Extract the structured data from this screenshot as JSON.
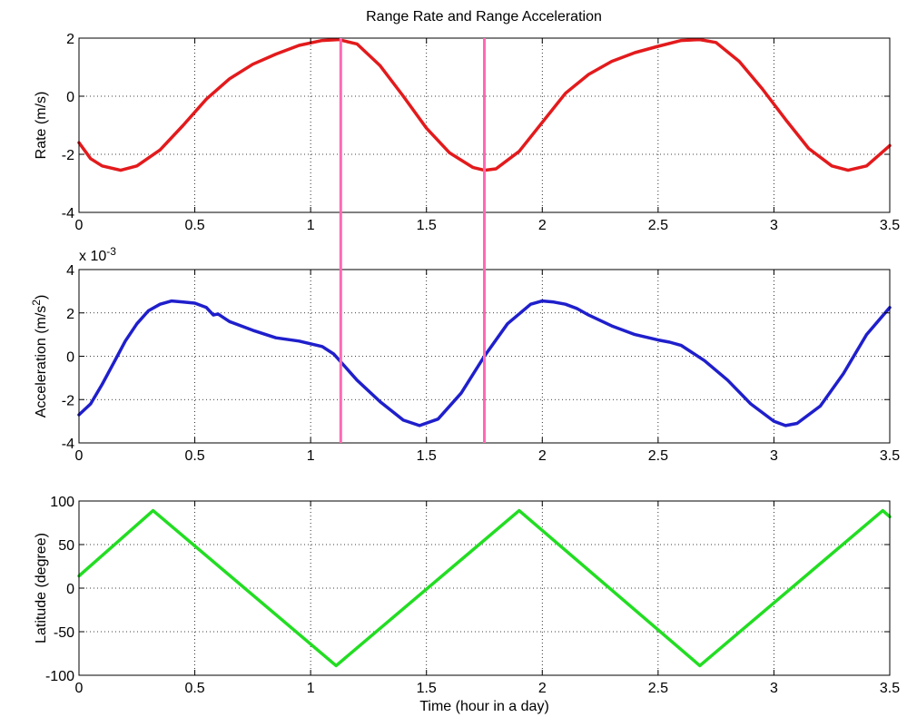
{
  "title": "Range Rate and Range Acceleration",
  "chart_data": [
    {
      "type": "line",
      "ylabel": "Rate (m/s)",
      "xlim": [
        0,
        3.5
      ],
      "ylim": [
        -4,
        2
      ],
      "xticks": [
        "0",
        "0.5",
        "1",
        "1.5",
        "2",
        "2.5",
        "3",
        "3.5"
      ],
      "yticks": [
        "-4",
        "-2",
        "0",
        "2"
      ],
      "grid": true,
      "series": [
        {
          "color": "#e31a1c",
          "x": [
            0,
            0.05,
            0.1,
            0.18,
            0.25,
            0.35,
            0.45,
            0.55,
            0.65,
            0.75,
            0.85,
            0.95,
            1.05,
            1.12,
            1.2,
            1.3,
            1.4,
            1.5,
            1.6,
            1.7,
            1.75,
            1.8,
            1.9,
            2.0,
            2.1,
            2.2,
            2.3,
            2.4,
            2.5,
            2.6,
            2.68,
            2.75,
            2.85,
            2.95,
            3.05,
            3.15,
            3.25,
            3.32,
            3.4,
            3.5
          ],
          "y": [
            -1.6,
            -2.15,
            -2.4,
            -2.55,
            -2.4,
            -1.85,
            -1.0,
            -0.1,
            0.6,
            1.1,
            1.45,
            1.75,
            1.92,
            1.95,
            1.8,
            1.05,
            0.0,
            -1.1,
            -1.95,
            -2.45,
            -2.55,
            -2.5,
            -1.9,
            -0.9,
            0.1,
            0.75,
            1.2,
            1.5,
            1.72,
            1.92,
            1.95,
            1.85,
            1.2,
            0.25,
            -0.8,
            -1.8,
            -2.4,
            -2.55,
            -2.4,
            -1.7
          ]
        }
      ]
    },
    {
      "type": "line",
      "ylabel": "Acceleration (m/s²)",
      "ylabel_main": "Acceleration (m/s",
      "ylabel_sup": "2",
      "ylabel_tail": ")",
      "exponent_label": "x 10",
      "exponent_sup": "-3",
      "xlim": [
        0,
        3.5
      ],
      "ylim": [
        -4,
        4
      ],
      "xticks": [
        "0",
        "0.5",
        "1",
        "1.5",
        "2",
        "2.5",
        "3",
        "3.5"
      ],
      "yticks": [
        "-4",
        "-2",
        "0",
        "2",
        "4"
      ],
      "grid": true,
      "series": [
        {
          "color": "#1f1fcc",
          "x": [
            0,
            0.05,
            0.1,
            0.15,
            0.2,
            0.25,
            0.3,
            0.35,
            0.4,
            0.45,
            0.5,
            0.55,
            0.58,
            0.6,
            0.65,
            0.75,
            0.85,
            0.95,
            1.05,
            1.1,
            1.15,
            1.2,
            1.3,
            1.4,
            1.47,
            1.55,
            1.65,
            1.75,
            1.85,
            1.95,
            2.0,
            2.05,
            2.1,
            2.15,
            2.2,
            2.3,
            2.4,
            2.5,
            2.55,
            2.6,
            2.7,
            2.8,
            2.9,
            3.0,
            3.05,
            3.1,
            3.2,
            3.3,
            3.4,
            3.5
          ],
          "y": [
            -2.7,
            -2.2,
            -1.3,
            -0.3,
            0.7,
            1.5,
            2.1,
            2.4,
            2.55,
            2.5,
            2.45,
            2.25,
            1.9,
            1.95,
            1.6,
            1.2,
            0.85,
            0.7,
            0.45,
            0.1,
            -0.5,
            -1.1,
            -2.1,
            -2.95,
            -3.2,
            -2.9,
            -1.7,
            0.0,
            1.5,
            2.4,
            2.55,
            2.5,
            2.4,
            2.2,
            1.9,
            1.4,
            1.0,
            0.75,
            0.65,
            0.5,
            -0.2,
            -1.1,
            -2.2,
            -3.0,
            -3.2,
            -3.1,
            -2.3,
            -0.8,
            1.0,
            2.25
          ]
        }
      ],
      "markers": {
        "color": "#ff69b4",
        "x": [
          1.13,
          1.75
        ]
      }
    },
    {
      "type": "line",
      "ylabel": "Latitude (degree)",
      "xlabel": "Time (hour in a day)",
      "xlim": [
        0,
        3.5
      ],
      "ylim": [
        -100,
        100
      ],
      "xticks": [
        "0",
        "0.5",
        "1",
        "1.5",
        "2",
        "2.5",
        "3",
        "3.5"
      ],
      "yticks": [
        "-100",
        "-50",
        "0",
        "50",
        "100"
      ],
      "grid": true,
      "series": [
        {
          "color": "#22dd22",
          "x": [
            0,
            0.32,
            1.11,
            1.9,
            2.68,
            3.47,
            3.5
          ],
          "y": [
            14,
            89,
            -89,
            89,
            -89,
            89,
            82
          ]
        }
      ]
    }
  ]
}
